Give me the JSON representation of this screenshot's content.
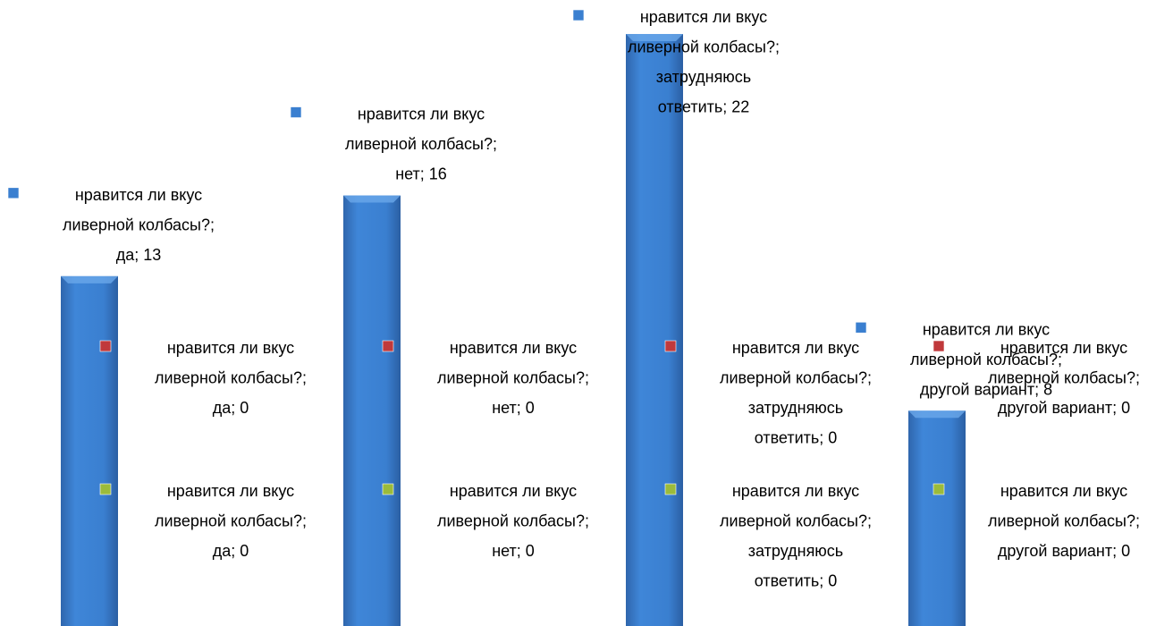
{
  "chart_data": {
    "type": "bar",
    "categories": [
      "да",
      "нет",
      "затрудняюсь ответить",
      "другой вариант"
    ],
    "series": [
      {
        "name": "нравится ли вкус ливерной колбасы?",
        "color": "#3a7fd0",
        "values": [
          13,
          16,
          22,
          8
        ],
        "value_labels": [
          "нравится ли вкус ливерной колбасы?; да; 13",
          "нравится ли вкус ливерной колбасы?; нет; 16",
          "нравится ли вкус ливерной колбасы?; затрудняюсь ответить; 22",
          "нравится ли вкус ливерной колбасы?; другой вариант; 8"
        ]
      },
      {
        "name": "нравится ли вкус ливерной колбасы?",
        "color": "#c0393b",
        "values": [
          0,
          0,
          0,
          0
        ],
        "value_labels": [
          "нравится ли вкус ливерной колбасы?; да; 0",
          "нравится ли вкус ливерной колбасы?; нет; 0",
          "нравится ли вкус ливерной колбасы?; затрудняюсь ответить; 0",
          "нравится ли вкус ливерной колбасы?; другой вариант; 0"
        ]
      },
      {
        "name": "нравится ли вкус ливерной колбасы?",
        "color": "#9bbb3b",
        "values": [
          0,
          0,
          0,
          0
        ],
        "value_labels": [
          "нравится ли вкус ливерной колбасы?; да; 0",
          "нравится ли вкус ливерной колбасы?; нет; 0",
          "нравится ли вкус ливерной колбасы?; затрудняюсь ответить; 0",
          "нравится ли вкус ливерной колбасы?; другой вариант; 0"
        ]
      }
    ]
  }
}
